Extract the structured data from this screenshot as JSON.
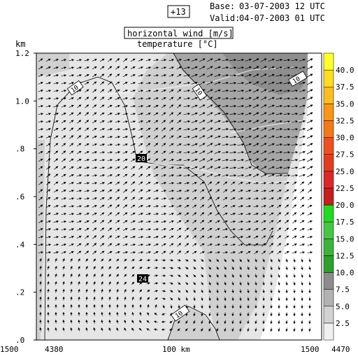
{
  "header": {
    "forecast_hour": "+13",
    "base_label": "Base:",
    "base_value": "03-07-2003  12 UTC",
    "valid_label": "Valid:",
    "valid_value": "04-07-2003  01 UTC",
    "field_primary": "horizontal wind [m/s]",
    "field_secondary": "temperature [°C]"
  },
  "chart_data": {
    "type": "heatmap",
    "title": "horizontal wind [m/s]",
    "subtitle": "temperature [°C]",
    "ylabel": "km",
    "ylim": [
      0,
      1.2
    ],
    "y_ticks": [
      ".0",
      ".2",
      ".4",
      ".6",
      ".8",
      "1.0",
      "1.2"
    ],
    "y_tick_values": [
      0,
      0.2,
      0.4,
      0.6,
      0.8,
      1.0,
      1.2
    ],
    "x_ticks": [
      "1500",
      "4380",
      "100 km",
      "1500",
      "4470"
    ],
    "colorbar": {
      "ticks": [
        "2.5",
        "5.0",
        "7.5",
        "10.0",
        "12.5",
        "15.0",
        "17.5",
        "20.0",
        "22.5",
        "25.0",
        "27.5",
        "30.0",
        "32.5",
        "35.0",
        "37.5",
        "40.0"
      ],
      "colors": [
        "#f0f0f0",
        "#d2d2d2",
        "#b2b2b2",
        "#8c8c8c",
        "#2ea02e",
        "#3cb43c",
        "#44c844",
        "#1fdc1f",
        "#c81e1e",
        "#dc2828",
        "#e63c1e",
        "#f0501e",
        "#f57814",
        "#fa9614",
        "#ffbe1e",
        "#ffdc1e",
        "#ffff28"
      ]
    },
    "isotherm_labels": [
      "20",
      "24",
      "10",
      "10",
      "10"
    ],
    "isotherms": [
      {
        "label": "20",
        "value": 20
      },
      {
        "label": "24",
        "value": 24
      }
    ]
  },
  "colors": {
    "low_wind": "#e6e6e6",
    "mid_wind": "#d0d0d0",
    "high_wind": "#a6a6a6",
    "top_wind": "#8e8e8e"
  }
}
